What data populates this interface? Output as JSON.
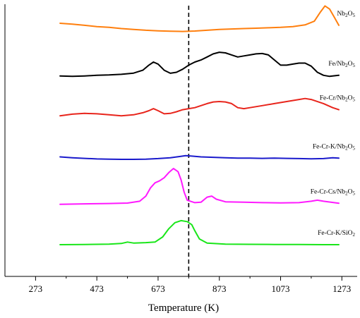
{
  "chart_data": {
    "type": "line",
    "title": "",
    "xlabel": "Temperature (K)",
    "ylabel": "",
    "xlim": [
      173,
      1323
    ],
    "x_ticks": [
      273,
      473,
      673,
      873,
      1073,
      1273
    ],
    "dashed_vertical_line_x": 773,
    "grid": false,
    "legend": "labels-right-of-curves",
    "series": [
      {
        "name": "Nb2O5",
        "label_main": "Nb",
        "label_sub1": "2",
        "label_mid": "O",
        "label_sub2": "5",
        "color": "#ff7f0e",
        "offset": 0.9,
        "points": [
          [
            353,
            0.4
          ],
          [
            393,
            0.36
          ],
          [
            433,
            0.3
          ],
          [
            473,
            0.24
          ],
          [
            513,
            0.2
          ],
          [
            553,
            0.14
          ],
          [
            593,
            0.1
          ],
          [
            633,
            0.06
          ],
          [
            673,
            0.03
          ],
          [
            713,
            0.01
          ],
          [
            753,
            0.0
          ],
          [
            793,
            0.02
          ],
          [
            833,
            0.06
          ],
          [
            873,
            0.1
          ],
          [
            913,
            0.12
          ],
          [
            953,
            0.14
          ],
          [
            993,
            0.16
          ],
          [
            1033,
            0.18
          ],
          [
            1073,
            0.2
          ],
          [
            1113,
            0.24
          ],
          [
            1153,
            0.32
          ],
          [
            1183,
            0.5
          ],
          [
            1203,
            0.95
          ],
          [
            1218,
            1.25
          ],
          [
            1233,
            1.1
          ],
          [
            1248,
            0.7
          ],
          [
            1263,
            0.3
          ]
        ]
      },
      {
        "name": "Fe/Nb2O5",
        "label_main": "Fe/Nb",
        "label_sub1": "2",
        "label_mid": "O",
        "label_sub2": "5",
        "color": "#000000",
        "offset": 0.735,
        "points": [
          [
            353,
            0.02
          ],
          [
            393,
            0.0
          ],
          [
            433,
            0.02
          ],
          [
            473,
            0.05
          ],
          [
            513,
            0.07
          ],
          [
            553,
            0.1
          ],
          [
            593,
            0.16
          ],
          [
            623,
            0.3
          ],
          [
            643,
            0.55
          ],
          [
            658,
            0.7
          ],
          [
            673,
            0.6
          ],
          [
            693,
            0.3
          ],
          [
            713,
            0.15
          ],
          [
            733,
            0.2
          ],
          [
            753,
            0.35
          ],
          [
            773,
            0.55
          ],
          [
            793,
            0.7
          ],
          [
            813,
            0.8
          ],
          [
            833,
            0.95
          ],
          [
            853,
            1.1
          ],
          [
            873,
            1.18
          ],
          [
            893,
            1.15
          ],
          [
            913,
            1.05
          ],
          [
            933,
            0.95
          ],
          [
            953,
            1.0
          ],
          [
            973,
            1.05
          ],
          [
            993,
            1.1
          ],
          [
            1013,
            1.12
          ],
          [
            1033,
            1.05
          ],
          [
            1053,
            0.8
          ],
          [
            1073,
            0.55
          ],
          [
            1093,
            0.55
          ],
          [
            1113,
            0.6
          ],
          [
            1133,
            0.65
          ],
          [
            1153,
            0.65
          ],
          [
            1173,
            0.5
          ],
          [
            1193,
            0.2
          ],
          [
            1213,
            0.05
          ],
          [
            1233,
            0.0
          ],
          [
            1263,
            0.05
          ]
        ]
      },
      {
        "name": "Fe-Cr/Nb2O5",
        "label_main": "Fe-Cr/Nb",
        "label_sub1": "2",
        "label_mid": "O",
        "label_sub2": "5",
        "color": "#e8251c",
        "offset": 0.59,
        "points": [
          [
            353,
            0.0
          ],
          [
            393,
            0.08
          ],
          [
            433,
            0.12
          ],
          [
            473,
            0.1
          ],
          [
            513,
            0.05
          ],
          [
            553,
            0.0
          ],
          [
            593,
            0.05
          ],
          [
            623,
            0.15
          ],
          [
            643,
            0.25
          ],
          [
            658,
            0.35
          ],
          [
            673,
            0.25
          ],
          [
            693,
            0.1
          ],
          [
            713,
            0.12
          ],
          [
            733,
            0.2
          ],
          [
            753,
            0.3
          ],
          [
            773,
            0.35
          ],
          [
            793,
            0.4
          ],
          [
            813,
            0.5
          ],
          [
            833,
            0.6
          ],
          [
            853,
            0.68
          ],
          [
            873,
            0.7
          ],
          [
            893,
            0.68
          ],
          [
            913,
            0.6
          ],
          [
            933,
            0.4
          ],
          [
            953,
            0.35
          ],
          [
            973,
            0.4
          ],
          [
            1013,
            0.5
          ],
          [
            1053,
            0.6
          ],
          [
            1093,
            0.7
          ],
          [
            1133,
            0.8
          ],
          [
            1153,
            0.85
          ],
          [
            1173,
            0.8
          ],
          [
            1213,
            0.6
          ],
          [
            1243,
            0.4
          ],
          [
            1263,
            0.3
          ]
        ]
      },
      {
        "name": "Fe-Cr-K/Nb2O5",
        "label_main": "Fe-Cr-K/Nb",
        "label_sub1": "2",
        "label_mid": "O",
        "label_sub2": "5",
        "color": "#1a1acc",
        "offset": 0.43,
        "points": [
          [
            353,
            0.12
          ],
          [
            393,
            0.08
          ],
          [
            433,
            0.05
          ],
          [
            473,
            0.02
          ],
          [
            513,
            0.01
          ],
          [
            553,
            0.0
          ],
          [
            593,
            0.0
          ],
          [
            633,
            0.01
          ],
          [
            673,
            0.04
          ],
          [
            713,
            0.08
          ],
          [
            743,
            0.14
          ],
          [
            763,
            0.18
          ],
          [
            783,
            0.16
          ],
          [
            813,
            0.12
          ],
          [
            853,
            0.1
          ],
          [
            893,
            0.08
          ],
          [
            933,
            0.06
          ],
          [
            973,
            0.06
          ],
          [
            1013,
            0.05
          ],
          [
            1053,
            0.06
          ],
          [
            1093,
            0.05
          ],
          [
            1133,
            0.04
          ],
          [
            1173,
            0.03
          ],
          [
            1213,
            0.04
          ],
          [
            1243,
            0.08
          ],
          [
            1263,
            0.06
          ]
        ]
      },
      {
        "name": "Fe-Cr-Cs/Nb2O5",
        "label_main": "Fe-Cr-Cs/Nb",
        "label_sub1": "2",
        "label_mid": "O",
        "label_sub2": "5",
        "color": "#ff19ff",
        "offset": 0.265,
        "points": [
          [
            353,
            0.0
          ],
          [
            433,
            0.02
          ],
          [
            513,
            0.04
          ],
          [
            573,
            0.06
          ],
          [
            613,
            0.15
          ],
          [
            633,
            0.4
          ],
          [
            648,
            0.8
          ],
          [
            663,
            1.05
          ],
          [
            678,
            1.15
          ],
          [
            693,
            1.3
          ],
          [
            708,
            1.55
          ],
          [
            723,
            1.75
          ],
          [
            738,
            1.6
          ],
          [
            748,
            1.2
          ],
          [
            758,
            0.6
          ],
          [
            768,
            0.2
          ],
          [
            793,
            0.08
          ],
          [
            813,
            0.1
          ],
          [
            833,
            0.35
          ],
          [
            848,
            0.4
          ],
          [
            863,
            0.25
          ],
          [
            893,
            0.12
          ],
          [
            953,
            0.1
          ],
          [
            1013,
            0.08
          ],
          [
            1073,
            0.07
          ],
          [
            1133,
            0.08
          ],
          [
            1173,
            0.15
          ],
          [
            1193,
            0.2
          ],
          [
            1213,
            0.15
          ],
          [
            1263,
            0.05
          ]
        ]
      },
      {
        "name": "Fe-Cr-K/SiO2",
        "label_main": "Fe-Cr-K/SiO",
        "label_sub1": "",
        "label_mid": "",
        "label_sub2": "2",
        "color": "#19e619",
        "offset": 0.115,
        "points": [
          [
            353,
            0.02
          ],
          [
            433,
            0.03
          ],
          [
            513,
            0.05
          ],
          [
            553,
            0.08
          ],
          [
            573,
            0.15
          ],
          [
            593,
            0.1
          ],
          [
            633,
            0.12
          ],
          [
            663,
            0.15
          ],
          [
            688,
            0.4
          ],
          [
            708,
            0.8
          ],
          [
            728,
            1.1
          ],
          [
            748,
            1.2
          ],
          [
            768,
            1.15
          ],
          [
            783,
            1.0
          ],
          [
            793,
            0.7
          ],
          [
            808,
            0.3
          ],
          [
            833,
            0.1
          ],
          [
            893,
            0.05
          ],
          [
            973,
            0.04
          ],
          [
            1053,
            0.03
          ],
          [
            1133,
            0.03
          ],
          [
            1213,
            0.02
          ],
          [
            1263,
            0.02
          ]
        ]
      }
    ]
  }
}
